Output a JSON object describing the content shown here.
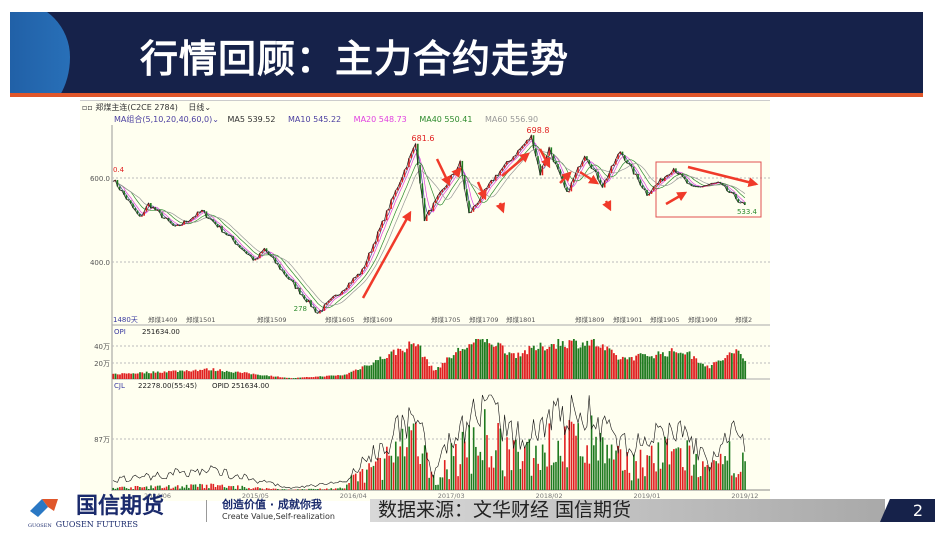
{
  "slide": {
    "title": "行情回顾：主力合约走势",
    "source": "数据来源：文华财经 国信期货",
    "page_number": "2",
    "logo": {
      "cn": "国信期货",
      "en": "GUOSEN FUTURES",
      "mark": "GUOSEN"
    },
    "slogan": "创造价值 · 成就你我",
    "slogan_en": "Create Value,Self-realization"
  },
  "chart_header": {
    "instrument": "郑煤主连(C2CE 2784)",
    "period": "日线",
    "ma_group": "MA组合(5,10,20,40,60,0)",
    "ma5": "MA5 539.52",
    "ma10": "MA10 545.22",
    "ma20": "MA20 548.73",
    "ma40": "MA40 550.41",
    "ma60": "MA60 556.90",
    "days": "1480天",
    "opi_label": "OPI",
    "opi_value": "251634.00",
    "cjl_label": "CJL",
    "cjl_value": "22278.00(55:45)",
    "opid": "OPID 251634.00"
  },
  "colors": {
    "ma5": "#333333",
    "ma10": "#4b3fa0",
    "ma20": "#e040e0",
    "ma40": "#2e8b2e",
    "ma60": "#999999",
    "up": "#e02020",
    "down": "#1f7a1f",
    "arrow": "#f03a2a",
    "title_bg": "#16224a",
    "accent": "#e0562a"
  },
  "chart_data": [
    {
      "type": "line",
      "title": "",
      "ylim": [
        250,
        720
      ],
      "y_ticks": [
        "600.0",
        "400.0"
      ],
      "x_contract_labels": [
        "郑煤1409",
        "郑煤1501",
        "郑煤1509",
        "郑煤1605",
        "郑煤1609",
        "郑煤1705",
        "郑煤1709",
        "郑煤1801",
        "郑煤1809",
        "郑煤1901",
        "郑煤1905",
        "郑煤1909",
        "郑煤2"
      ],
      "x_date_labels": [
        "2014/06",
        "2015/05",
        "2016/04",
        "2017/03",
        "2018/02",
        "2019/01",
        "2019/12"
      ],
      "annotations": [
        "0.4",
        "681.6",
        "698.8",
        "278",
        "533.4"
      ],
      "grid": true,
      "series": [
        {
          "x": [
            "2014/01",
            "2014/04",
            "2014/05",
            "2014/08",
            "2014/11",
            "2015/05",
            "2015/06",
            "2015/08",
            "2015/12",
            "2016/05",
            "2016/11",
            "2016/12",
            "2017/04",
            "2017/05",
            "2017/08",
            "2017/12",
            "2018/01",
            "2018/02",
            "2018/04",
            "2018/06",
            "2018/08",
            "2018/10",
            "2019/01",
            "2019/04",
            "2019/06",
            "2019/09",
            "2019/12"
          ],
          "y": [
            598,
            505,
            538,
            481,
            521,
            402,
            431,
            379,
            278,
            379,
            681.6,
            502,
            636,
            514,
            605,
            698.8,
            610,
            671,
            562,
            657,
            581,
            664,
            562,
            624,
            576,
            588,
            533.4
          ]
        }
      ]
    },
    {
      "type": "bar",
      "title": "",
      "ylabel_ticks": [
        "40万",
        "20万"
      ],
      "series": [
        {
          "x": [
            "2014/01",
            "2014/12",
            "2015/09",
            "2016/03",
            "2016/11",
            "2017/01",
            "2017/04",
            "2017/07",
            "2017/10",
            "2018/03",
            "2018/07",
            "2018/10",
            "2019/05",
            "2019/08",
            "2019/11",
            "2019/12"
          ],
          "y": [
            6,
            12,
            1,
            5,
            45,
            10,
            37,
            50,
            30,
            45,
            45,
            25,
            35,
            15,
            35,
            22
          ]
        }
      ]
    },
    {
      "type": "bar",
      "title": "",
      "ylabel_ticks": [
        "87万"
      ]
    }
  ]
}
